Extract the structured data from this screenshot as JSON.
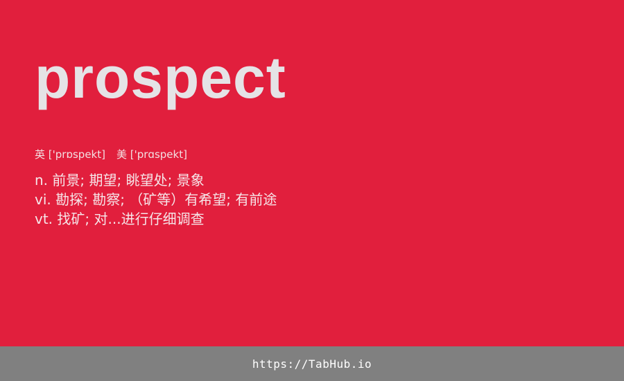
{
  "word": "prospect",
  "phonetics": {
    "uk_label": "英",
    "uk_ipa": "['prɒspekt]",
    "us_label": "美",
    "us_ipa": "['prɑspekt]"
  },
  "definitions": [
    {
      "pos": "n.",
      "meaning": "前景; 期望; 眺望处; 景象"
    },
    {
      "pos": "vi.",
      "meaning": "勘探; 勘察; （矿等）有希望; 有前途"
    },
    {
      "pos": "vt.",
      "meaning": "找矿; 对...进行仔细调查"
    }
  ],
  "footer": {
    "url": "https://TabHub.io"
  },
  "colors": {
    "background": "#e11f3d",
    "footer_background": "#808080",
    "word_text": "#e5e3e6"
  }
}
